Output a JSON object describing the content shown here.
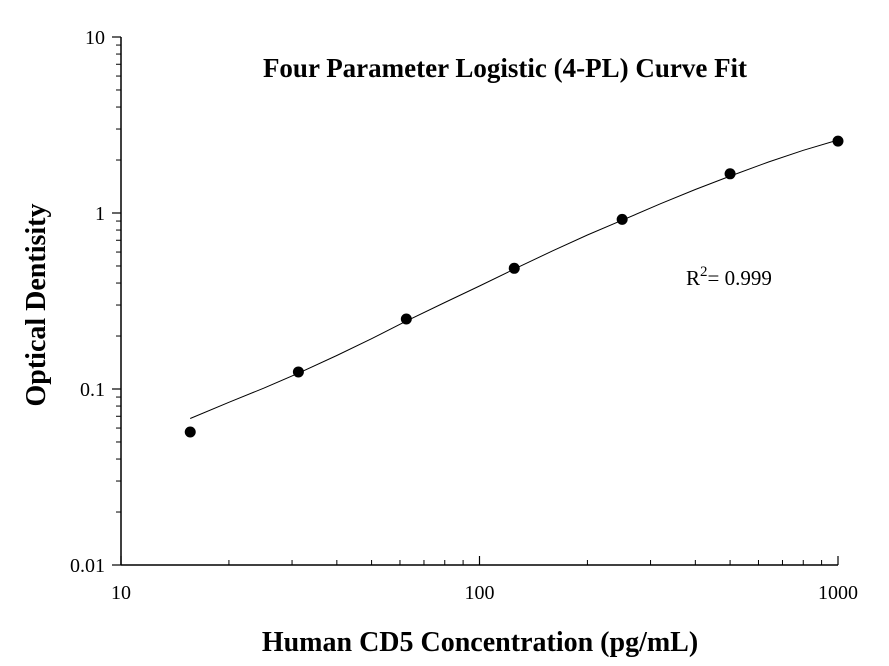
{
  "chart_data": {
    "type": "scatter",
    "title": "Four Parameter Logistic (4-PL) Curve Fit",
    "xlabel": "Human CD5 Concentration (pg/mL)",
    "ylabel": "Optical Dentisity",
    "xscale": "log",
    "yscale": "log",
    "xlim": [
      10,
      1000
    ],
    "ylim": [
      0.01,
      10
    ],
    "x_ticks": [
      "10",
      "100",
      "1000"
    ],
    "y_ticks": [
      "0.01",
      "0.1",
      "1",
      "10"
    ],
    "grid": false,
    "legend": "none",
    "series": [
      {
        "points": [
          {
            "x": 15.6,
            "y": 0.057
          },
          {
            "x": 31.25,
            "y": 0.125
          },
          {
            "x": 62.5,
            "y": 0.25
          },
          {
            "x": 125,
            "y": 0.485
          },
          {
            "x": 250,
            "y": 0.92
          },
          {
            "x": 500,
            "y": 1.67
          },
          {
            "x": 1000,
            "y": 2.56
          }
        ]
      }
    ],
    "fit_curve": {
      "x": [
        15.6,
        20,
        25,
        31.25,
        40,
        50,
        62.5,
        80,
        100,
        125,
        160,
        200,
        250,
        320,
        400,
        500,
        640,
        800,
        1000
      ],
      "y": [
        0.068,
        0.084,
        0.101,
        0.123,
        0.155,
        0.193,
        0.243,
        0.31,
        0.385,
        0.48,
        0.61,
        0.75,
        0.91,
        1.13,
        1.36,
        1.62,
        1.95,
        2.27,
        2.6
      ]
    },
    "annotation": {
      "r_base": "R",
      "r_exp": "2",
      "r_value": "= 0.999"
    },
    "colors": {
      "marker": "#000000",
      "line": "#000000",
      "background": "#ffffff"
    }
  }
}
